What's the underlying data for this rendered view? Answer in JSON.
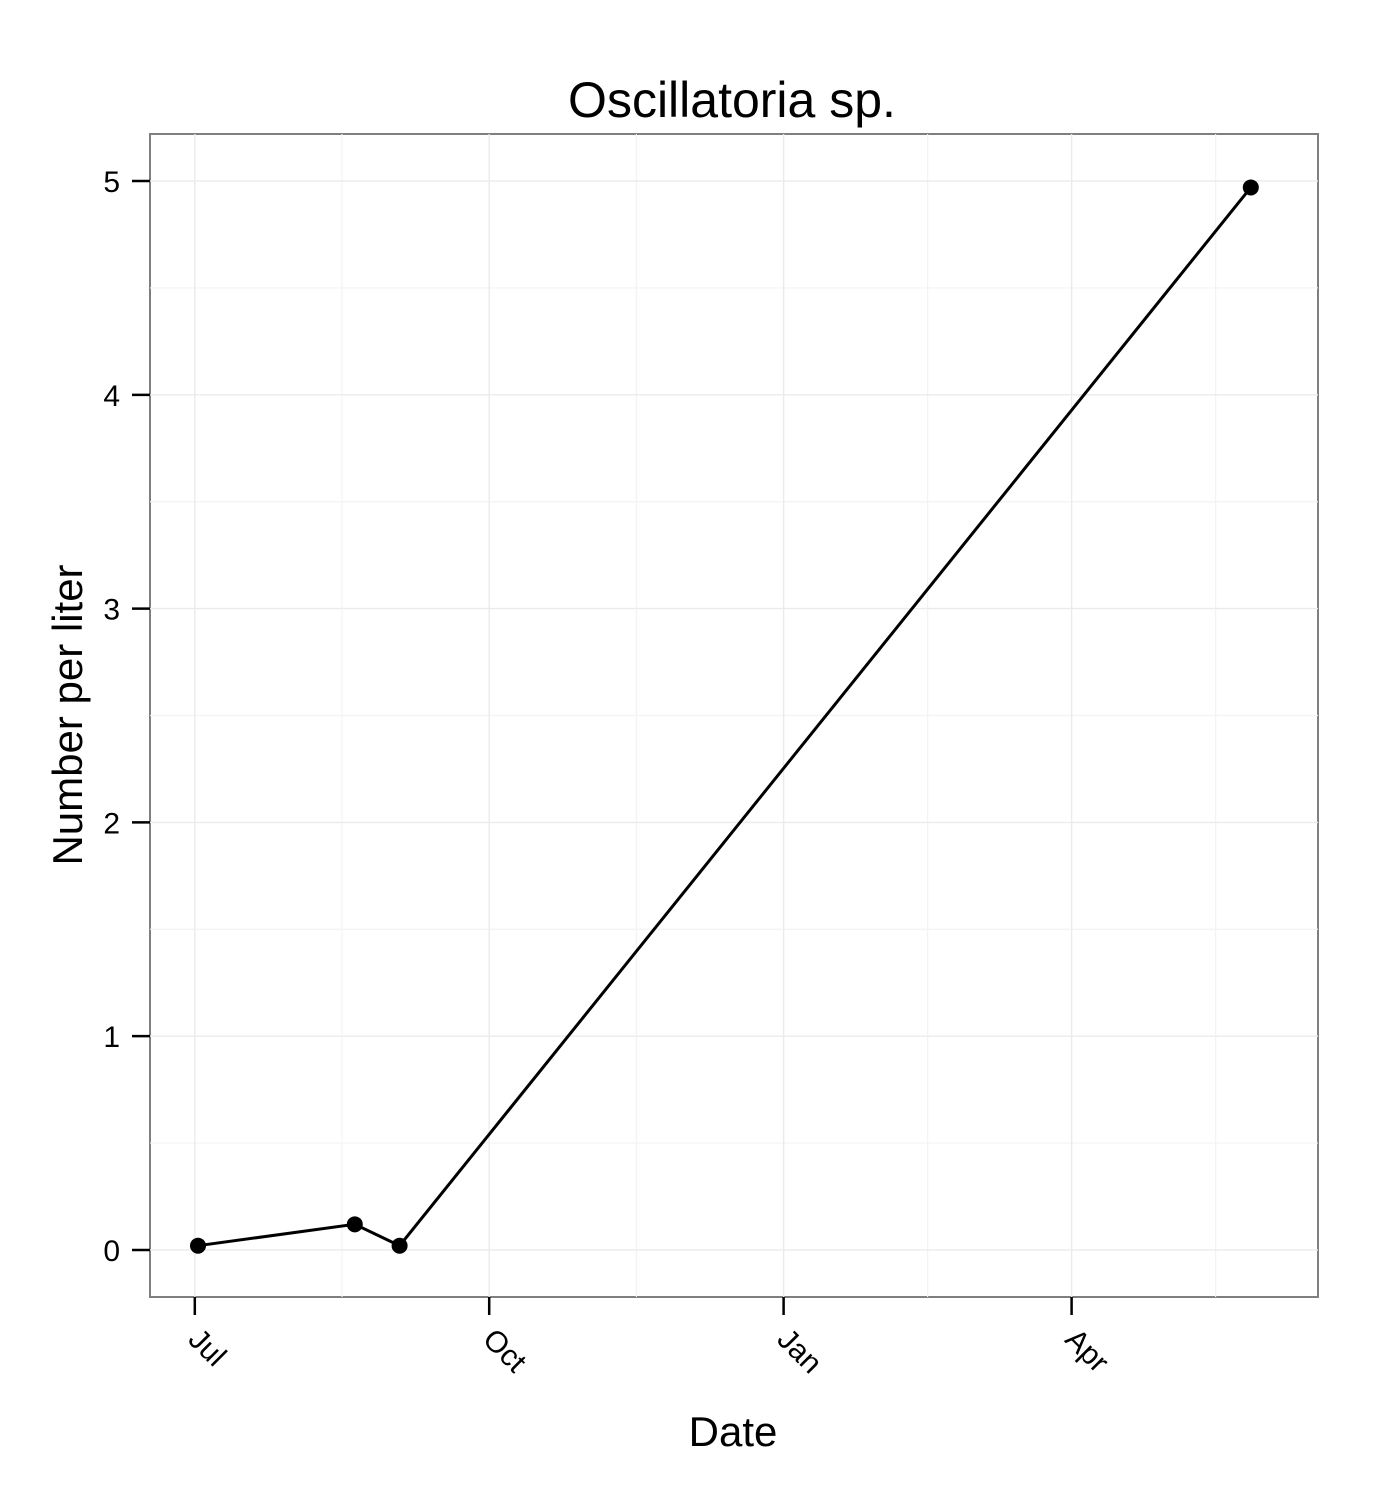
{
  "chart_data": {
    "type": "line",
    "title": "Oscillatoria sp.",
    "xlabel": "Date",
    "ylabel": "Number per liter",
    "x_ticks": [
      {
        "date": "2012-07-01",
        "label": "Jul"
      },
      {
        "date": "2012-10-01",
        "label": "Oct"
      },
      {
        "date": "2013-01-01",
        "label": "Jan"
      },
      {
        "date": "2013-04-01",
        "label": "Apr"
      }
    ],
    "y_ticks": [
      0,
      1,
      2,
      3,
      4,
      5
    ],
    "xlim": [
      "2012-06-17",
      "2013-06-17"
    ],
    "ylim": [
      -0.22,
      5.22
    ],
    "grid": true,
    "series": [
      {
        "x": [
          "2012-07-02",
          "2012-08-20",
          "2012-09-03",
          "2013-05-27"
        ],
        "y": [
          0.02,
          0.12,
          0.02,
          4.97
        ]
      }
    ],
    "colors": {
      "line": "#000000",
      "points": "#000000",
      "panel_border": "#7f7f7f",
      "grid": "#ebebeb"
    }
  }
}
